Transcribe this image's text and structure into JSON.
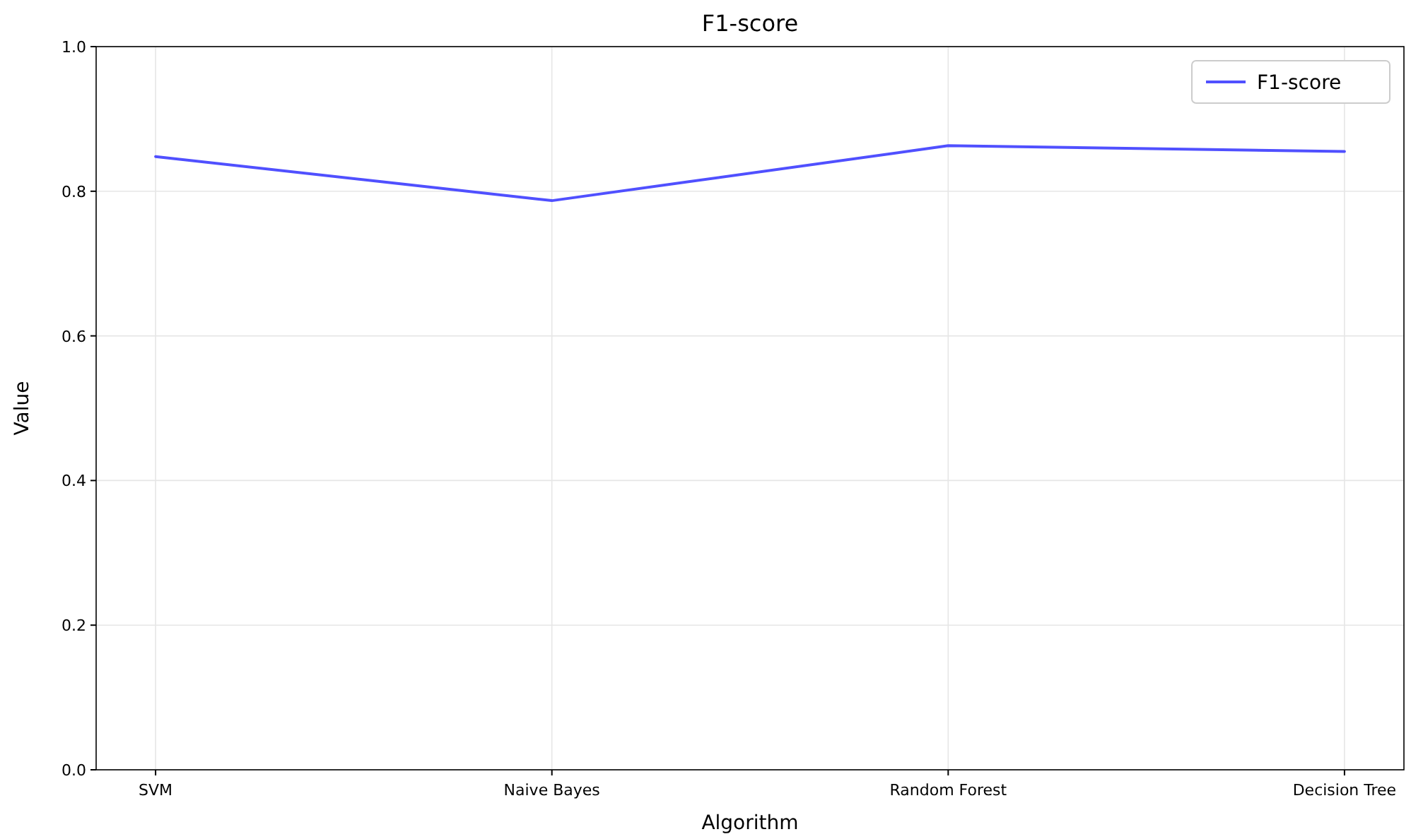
{
  "chart_data": {
    "type": "line",
    "title": "F1-score",
    "xlabel": "Algorithm",
    "ylabel": "Value",
    "categories": [
      "SVM",
      "Naive Bayes",
      "Random Forest",
      "Decision Tree"
    ],
    "series": [
      {
        "name": "F1-score",
        "color": "#5050ff",
        "values": [
          0.848,
          0.787,
          0.863,
          0.855
        ]
      }
    ],
    "ylim": [
      0,
      1
    ],
    "yticks": [
      {
        "value": 0,
        "label": "0.0"
      },
      {
        "value": 0.2,
        "label": "0.2"
      },
      {
        "value": 0.4,
        "label": "0.4"
      },
      {
        "value": 0.6,
        "label": "0.6"
      },
      {
        "value": 0.8,
        "label": "0.8"
      },
      {
        "value": 1,
        "label": "1.0"
      }
    ],
    "grid": true,
    "legend": "top right",
    "marker": "none",
    "line_style": "solid"
  }
}
